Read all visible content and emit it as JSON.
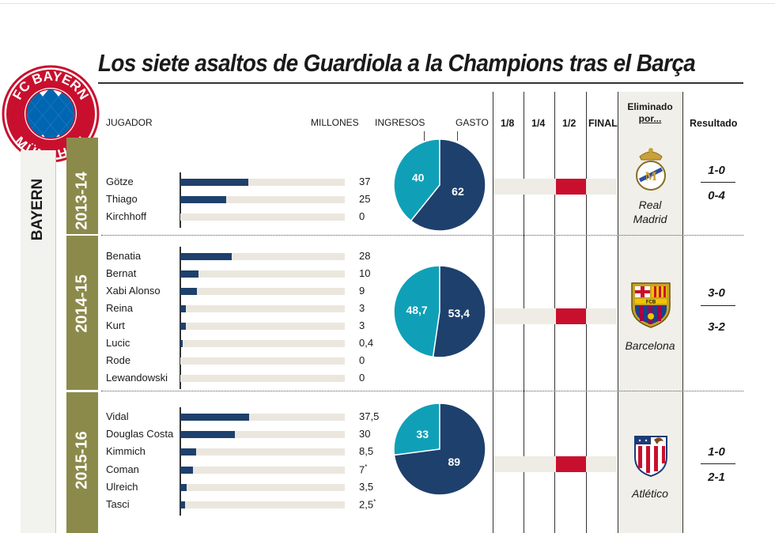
{
  "title": "Los siete asaltos de Guardiola a la Champions tras el Barça",
  "team": "BAYERN",
  "logo": {
    "top_text": "FC BAYERN",
    "bottom_text": "MÜNCHEN",
    "colors": {
      "red": "#c8102e",
      "blue": "#0066b2"
    }
  },
  "headers": {
    "player": "JUGADOR",
    "millions": "MILLONES",
    "income": "INGRESOS",
    "spending": "GASTO",
    "rounds": [
      "1/8",
      "1/4",
      "1/2",
      "FINAL"
    ],
    "eliminated_by": [
      "Eliminado",
      "por..."
    ],
    "result": "Resultado"
  },
  "colors": {
    "spending": "#1e406c",
    "income": "#0fa0b8",
    "season_band": "#8c8a4b",
    "eliminated_round": "#c8102e",
    "bar_track": "#ebe7de"
  },
  "chart_data": [
    {
      "type": "bar",
      "season": "2013-14",
      "categories": [
        "Götze",
        "Thiago",
        "Kirchhoff"
      ],
      "values": [
        37,
        25,
        0
      ],
      "value_labels": [
        "37",
        "25",
        "0"
      ],
      "xlim": [
        0,
        90
      ]
    },
    {
      "type": "pie",
      "season": "2013-14",
      "labels": [
        "Ingresos",
        "Gasto"
      ],
      "values": [
        40,
        62
      ],
      "value_labels": [
        "40",
        "62"
      ]
    },
    {
      "type": "bar",
      "season": "2014-15",
      "categories": [
        "Benatia",
        "Bernat",
        "Xabi Alonso",
        "Reina",
        "Kurt",
        "Lucic",
        "Rode",
        "Lewandowski"
      ],
      "values": [
        28,
        10,
        9,
        3,
        3,
        0.4,
        0,
        0
      ],
      "value_labels": [
        "28",
        "10",
        "9",
        "3",
        "3",
        "0,4",
        "0",
        "0"
      ],
      "xlim": [
        0,
        90
      ]
    },
    {
      "type": "pie",
      "season": "2014-15",
      "labels": [
        "Ingresos",
        "Gasto"
      ],
      "values": [
        48.7,
        53.4
      ],
      "value_labels": [
        "48,7",
        "53,4"
      ]
    },
    {
      "type": "bar",
      "season": "2015-16",
      "categories": [
        "Vidal",
        "Douglas Costa",
        "Kimmich",
        "Coman",
        "Ulreich",
        "Tasci"
      ],
      "values": [
        37.5,
        30,
        8.5,
        7,
        3.5,
        2.5
      ],
      "value_labels": [
        "37,5",
        "30",
        "8,5",
        "7",
        "3,5",
        "2,5"
      ],
      "asterisk": [
        false,
        false,
        false,
        true,
        false,
        true
      ],
      "xlim": [
        0,
        90
      ]
    },
    {
      "type": "pie",
      "season": "2015-16",
      "labels": [
        "Ingresos",
        "Gasto"
      ],
      "values": [
        33,
        89
      ],
      "value_labels": [
        "33",
        "89"
      ]
    }
  ],
  "seasons": [
    {
      "label": "2013-14",
      "eliminated_round": "1/2",
      "opponent": [
        "Real",
        "Madrid"
      ],
      "opponent_icon": "real-madrid-crest-icon",
      "results": [
        "1-0",
        "0-4"
      ]
    },
    {
      "label": "2014-15",
      "eliminated_round": "1/2",
      "opponent": [
        "Barcelona"
      ],
      "opponent_icon": "fc-barcelona-crest-icon",
      "results": [
        "3-0",
        "3-2"
      ]
    },
    {
      "label": "2015-16",
      "eliminated_round": "1/2",
      "opponent": [
        "Atlético"
      ],
      "opponent_icon": "atletico-madrid-crest-icon",
      "results": [
        "1-0",
        "2-1"
      ]
    }
  ]
}
